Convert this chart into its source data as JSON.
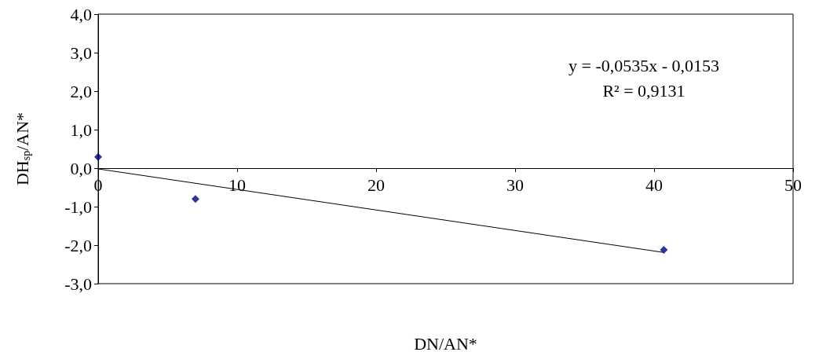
{
  "chart_data": {
    "type": "scatter",
    "xlabel": "DN/AN*",
    "ylabel": "DH$_{sp}$/AN*",
    "series": [
      {
        "type": "scatter",
        "color": "#000080",
        "marker": "diamond",
        "x": [
          0,
          7,
          40.7
        ],
        "values": [
          0.29,
          -0.8,
          -2.12
        ]
      },
      {
        "type": "line",
        "color": "#000000",
        "marker": "none",
        "line_style": "solid",
        "x": [
          0,
          40.7
        ],
        "values": [
          -0.02,
          -2.19
        ]
      }
    ],
    "xlim": [
      0,
      50
    ],
    "xticks": [
      0,
      10,
      20,
      30,
      40,
      50
    ],
    "ylim": [
      -3,
      4
    ],
    "yticks": [
      {
        "value": -3,
        "label": "-3,0"
      },
      {
        "value": -2,
        "label": "-2,0"
      },
      {
        "value": -1,
        "label": "-1,0"
      },
      {
        "value": 0,
        "label": "0,0"
      },
      {
        "value": 1,
        "label": "1,0"
      },
      {
        "value": 2,
        "label": "2,0"
      },
      {
        "value": 3,
        "label": "3,0"
      },
      {
        "value": 4,
        "label": "4,0"
      }
    ],
    "grid": false,
    "annotations": [
      "y = -0,0535x - 0,0153",
      "R² = 0,9131"
    ]
  }
}
